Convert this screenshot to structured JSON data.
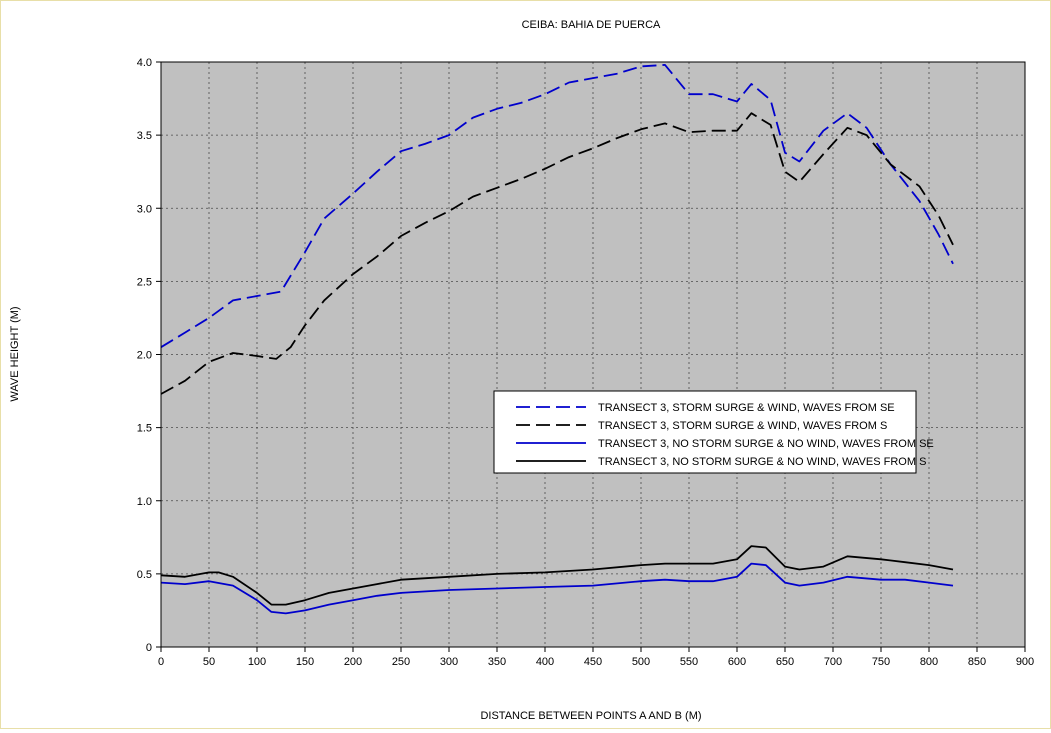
{
  "chart_data": {
    "type": "line",
    "title": "CEIBA: BAHIA DE PUERCA",
    "xlabel": "DISTANCE BETWEEN POINTS A AND B (M)",
    "ylabel": "WAVE HEIGHT (M)",
    "xlim": [
      0,
      900
    ],
    "ylim": [
      0,
      4.0
    ],
    "x_ticks": [
      0,
      50,
      100,
      150,
      200,
      250,
      300,
      350,
      400,
      450,
      500,
      550,
      600,
      650,
      700,
      750,
      800,
      850,
      900
    ],
    "y_ticks": [
      0,
      0.5,
      1.0,
      1.5,
      2.0,
      2.5,
      3.0,
      3.5,
      4.0
    ],
    "x_tick_labels": [
      "0",
      "50",
      "100",
      "150",
      "200",
      "250",
      "300",
      "350",
      "400",
      "450",
      "500",
      "550",
      "600",
      "650",
      "700",
      "750",
      "800",
      "850",
      "900"
    ],
    "y_tick_labels": [
      "0",
      "0.5",
      "1.0",
      "1.5",
      "2.0",
      "2.5",
      "3.0",
      "3.5",
      "4.0"
    ],
    "grid": true,
    "plot_background": "#c0c0c0",
    "legend_placement": "center-right",
    "series": [
      {
        "name": "TRANSECT 3, STORM SURGE & WIND, WAVES FROM SE",
        "color": "#0000cc",
        "dash": "dashed",
        "x": [
          0,
          25,
          50,
          75,
          100,
          125,
          150,
          170,
          200,
          225,
          250,
          275,
          300,
          325,
          350,
          375,
          400,
          425,
          450,
          475,
          500,
          525,
          550,
          575,
          600,
          615,
          635,
          650,
          665,
          690,
          715,
          735,
          760,
          790,
          810,
          825
        ],
        "y": [
          2.05,
          2.15,
          2.25,
          2.37,
          2.4,
          2.43,
          2.7,
          2.93,
          3.1,
          3.25,
          3.39,
          3.44,
          3.5,
          3.62,
          3.68,
          3.72,
          3.78,
          3.86,
          3.89,
          3.92,
          3.97,
          3.98,
          3.78,
          3.78,
          3.73,
          3.85,
          3.74,
          3.38,
          3.32,
          3.53,
          3.65,
          3.55,
          3.3,
          3.05,
          2.82,
          2.62
        ]
      },
      {
        "name": "TRANSECT 3, STORM SURGE & WIND, WAVES FROM S",
        "color": "#000000",
        "dash": "dashed",
        "x": [
          0,
          25,
          50,
          75,
          100,
          120,
          135,
          150,
          170,
          200,
          225,
          250,
          275,
          300,
          325,
          350,
          375,
          400,
          425,
          450,
          475,
          500,
          525,
          550,
          575,
          600,
          615,
          635,
          650,
          665,
          690,
          715,
          735,
          760,
          790,
          810,
          825
        ],
        "y": [
          1.73,
          1.82,
          1.95,
          2.01,
          1.99,
          1.97,
          2.05,
          2.2,
          2.37,
          2.55,
          2.67,
          2.81,
          2.9,
          2.98,
          3.08,
          3.14,
          3.2,
          3.27,
          3.35,
          3.41,
          3.48,
          3.54,
          3.58,
          3.52,
          3.53,
          3.53,
          3.65,
          3.57,
          3.25,
          3.18,
          3.37,
          3.55,
          3.5,
          3.3,
          3.15,
          2.95,
          2.75
        ]
      },
      {
        "name": "TRANSECT 3, NO STORM SURGE & NO WIND, WAVES FROM SE",
        "color": "#0000cc",
        "dash": "solid",
        "x": [
          0,
          25,
          50,
          75,
          100,
          115,
          130,
          150,
          175,
          200,
          225,
          250,
          300,
          350,
          400,
          450,
          500,
          525,
          550,
          575,
          600,
          615,
          630,
          650,
          665,
          690,
          715,
          750,
          775,
          800,
          825
        ],
        "y": [
          0.44,
          0.43,
          0.45,
          0.42,
          0.32,
          0.24,
          0.23,
          0.25,
          0.29,
          0.32,
          0.35,
          0.37,
          0.39,
          0.4,
          0.41,
          0.42,
          0.45,
          0.46,
          0.45,
          0.45,
          0.48,
          0.57,
          0.56,
          0.44,
          0.42,
          0.44,
          0.48,
          0.46,
          0.46,
          0.44,
          0.42
        ]
      },
      {
        "name": "TRANSECT 3, NO STORM SURGE & NO WIND, WAVES FROM S",
        "color": "#000000",
        "dash": "solid",
        "x": [
          0,
          25,
          50,
          60,
          75,
          100,
          115,
          130,
          150,
          175,
          200,
          225,
          250,
          300,
          350,
          400,
          450,
          500,
          525,
          550,
          575,
          600,
          615,
          630,
          650,
          665,
          690,
          715,
          750,
          775,
          800,
          825
        ],
        "y": [
          0.49,
          0.48,
          0.51,
          0.51,
          0.48,
          0.37,
          0.29,
          0.29,
          0.32,
          0.37,
          0.4,
          0.43,
          0.46,
          0.48,
          0.5,
          0.51,
          0.53,
          0.56,
          0.57,
          0.57,
          0.57,
          0.6,
          0.69,
          0.68,
          0.55,
          0.53,
          0.55,
          0.62,
          0.6,
          0.58,
          0.56,
          0.53
        ]
      }
    ]
  }
}
